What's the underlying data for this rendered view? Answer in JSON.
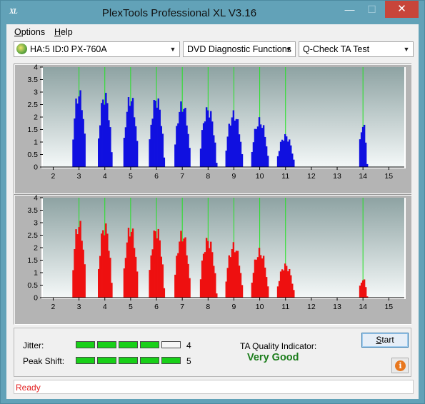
{
  "window": {
    "title": "PlexTools Professional XL V3.16",
    "app_icon_text": "XL",
    "controls": {
      "minimize": "—",
      "maximize": "☐",
      "close": "✕"
    },
    "accent": "#62a2b8"
  },
  "menu": {
    "options": {
      "underlined": "O",
      "rest": "ptions"
    },
    "help": {
      "underlined": "H",
      "rest": "elp"
    }
  },
  "toolbar": {
    "drive": "HA:5 ID:0  PX-760A",
    "function": "DVD Diagnostic Functions",
    "test": "Q-Check TA Test",
    "dropdown_icon": "chevron-down-icon"
  },
  "chart_data": [
    {
      "type": "bar",
      "name": "top",
      "color": "#1010e0",
      "xlim": [
        1.6,
        15.6
      ],
      "ylim": [
        0,
        4
      ],
      "x_ticks": [
        "2",
        "3",
        "4",
        "5",
        "6",
        "7",
        "8",
        "9",
        "10",
        "11",
        "12",
        "13",
        "14",
        "15"
      ],
      "y_ticks": [
        "0",
        "0.5",
        "1",
        "1.5",
        "2",
        "2.5",
        "3",
        "3.5",
        "4"
      ],
      "green_lines": [
        3,
        4,
        5,
        6,
        7,
        8,
        9,
        10,
        11,
        14
      ],
      "peaks": [
        {
          "center": 3,
          "height": 3.2
        },
        {
          "center": 4,
          "height": 3.1
        },
        {
          "center": 5,
          "height": 3.0
        },
        {
          "center": 6,
          "height": 2.95
        },
        {
          "center": 7,
          "height": 2.7
        },
        {
          "center": 8,
          "height": 2.5
        },
        {
          "center": 9,
          "height": 2.3
        },
        {
          "center": 10,
          "height": 2.0
        },
        {
          "center": 11,
          "height": 1.35
        },
        {
          "center": 14,
          "height": 1.85
        }
      ]
    },
    {
      "type": "bar",
      "name": "bottom",
      "color": "#ee1010",
      "xlim": [
        1.6,
        15.6
      ],
      "ylim": [
        0,
        4
      ],
      "x_ticks": [
        "2",
        "3",
        "4",
        "5",
        "6",
        "7",
        "8",
        "9",
        "10",
        "11",
        "12",
        "13",
        "14",
        "15"
      ],
      "y_ticks": [
        "0",
        "0.5",
        "1",
        "1.5",
        "2",
        "2.5",
        "3",
        "3.5",
        "4"
      ],
      "green_lines": [
        3,
        4,
        5,
        6,
        7,
        8,
        9,
        10,
        11,
        14
      ],
      "peaks": [
        {
          "center": 3,
          "height": 3.2
        },
        {
          "center": 4,
          "height": 3.1
        },
        {
          "center": 5,
          "height": 3.0
        },
        {
          "center": 6,
          "height": 2.95
        },
        {
          "center": 7,
          "height": 2.75
        },
        {
          "center": 8,
          "height": 2.5
        },
        {
          "center": 9,
          "height": 2.25
        },
        {
          "center": 10,
          "height": 2.0
        },
        {
          "center": 11,
          "height": 1.4
        },
        {
          "center": 14,
          "height": 0.8
        }
      ]
    }
  ],
  "metrics": {
    "jitter": {
      "label": "Jitter:",
      "value": "4",
      "level": 4,
      "max": 5
    },
    "peak_shift": {
      "label": "Peak Shift:",
      "value": "5",
      "level": 5,
      "max": 5
    },
    "ta_label": "TA Quality Indicator:",
    "ta_value": "Very Good",
    "ta_color": "#1c7d1c"
  },
  "buttons": {
    "start": {
      "underlined": "S",
      "rest": "tart"
    },
    "info_icon": "info-icon",
    "info_glyph": "i"
  },
  "status": {
    "text": "Ready",
    "color": "#e32222"
  }
}
